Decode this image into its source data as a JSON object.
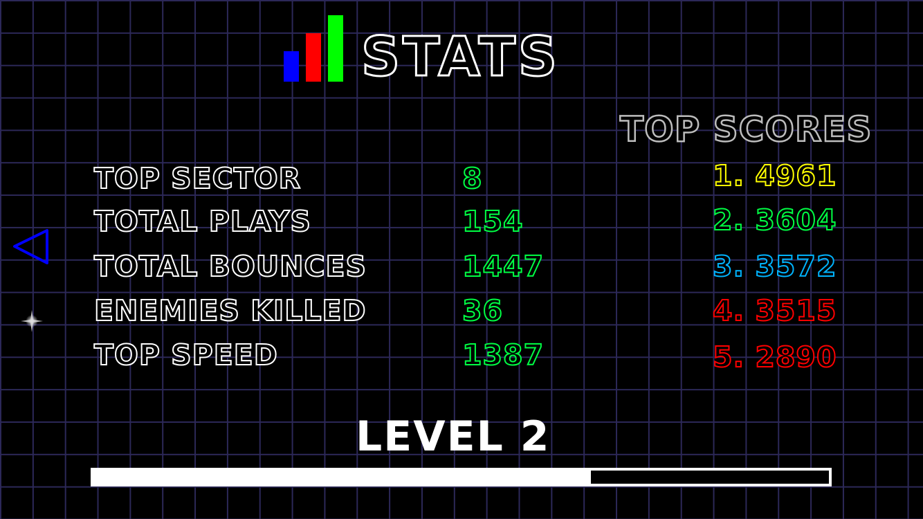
{
  "header": {
    "title": "STATS",
    "logo_icon": "bar-chart-icon",
    "logo_colors": [
      "#0000ff",
      "#ff0000",
      "#00ff00"
    ]
  },
  "stats": [
    {
      "label": "TOP SECTOR",
      "value": "8"
    },
    {
      "label": "TOTAL PLAYS",
      "value": "154"
    },
    {
      "label": "TOTAL BOUNCES",
      "value": "1447"
    },
    {
      "label": "ENEMIES KILLED",
      "value": "36"
    },
    {
      "label": "TOP SPEED",
      "value": "1387"
    }
  ],
  "top_scores": {
    "title": "TOP SCORES",
    "items": [
      {
        "text": "1. 4961",
        "color": "#ffff00"
      },
      {
        "text": "2. 3604",
        "color": "#00ff44"
      },
      {
        "text": "3. 3572",
        "color": "#00b4ff"
      },
      {
        "text": "4. 3515",
        "color": "#ff0000"
      },
      {
        "text": "5. 2890",
        "color": "#ff0000"
      }
    ]
  },
  "level": {
    "label": "LEVEL 2",
    "progress": 0.676
  },
  "nav": {
    "back_icon": "triangle-back-icon",
    "star_icon": "sparkle-icon"
  }
}
